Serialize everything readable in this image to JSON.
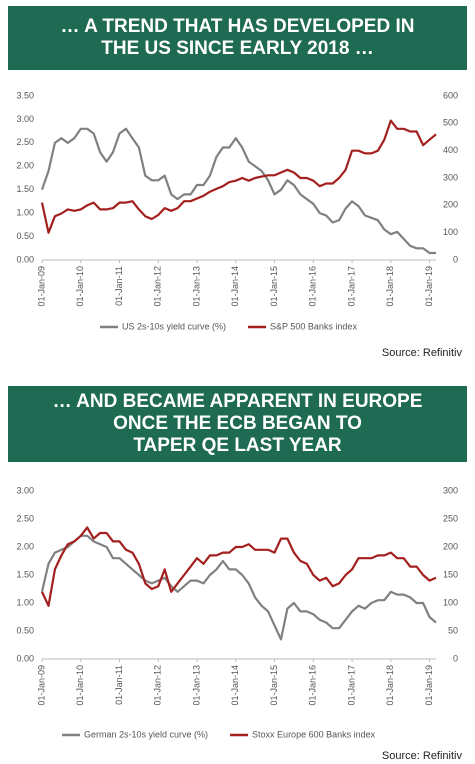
{
  "chart_data": [
    {
      "type": "line",
      "title": [
        "… A TREND THAT HAS DEVELOPED IN",
        "THE US SINCE EARLY 2018 …"
      ],
      "x": [
        "2009-01",
        "2009-03",
        "2009-05",
        "2009-07",
        "2009-09",
        "2009-11",
        "2010-01",
        "2010-03",
        "2010-05",
        "2010-07",
        "2010-09",
        "2010-11",
        "2011-01",
        "2011-03",
        "2011-05",
        "2011-07",
        "2011-09",
        "2011-11",
        "2012-01",
        "2012-03",
        "2012-05",
        "2012-07",
        "2012-09",
        "2012-11",
        "2013-01",
        "2013-03",
        "2013-05",
        "2013-07",
        "2013-09",
        "2013-11",
        "2014-01",
        "2014-03",
        "2014-05",
        "2014-07",
        "2014-09",
        "2014-11",
        "2015-01",
        "2015-03",
        "2015-05",
        "2015-07",
        "2015-09",
        "2015-11",
        "2016-01",
        "2016-03",
        "2016-05",
        "2016-07",
        "2016-09",
        "2016-11",
        "2017-01",
        "2017-03",
        "2017-05",
        "2017-07",
        "2017-09",
        "2017-11",
        "2018-01",
        "2018-03",
        "2018-05",
        "2018-07",
        "2018-09",
        "2018-11",
        "2019-01",
        "2019-03"
      ],
      "xlim": [
        "2009-01",
        "2019-03"
      ],
      "xticks": [
        {
          "value": "2009-01",
          "label": "01-Jan-09"
        },
        {
          "value": "2010-01",
          "label": "01-Jan-10"
        },
        {
          "value": "2011-01",
          "label": "01-Jan-11"
        },
        {
          "value": "2012-01",
          "label": "01-Jan-12"
        },
        {
          "value": "2013-01",
          "label": "01-Jan-13"
        },
        {
          "value": "2014-01",
          "label": "01-Jan-14"
        },
        {
          "value": "2015-01",
          "label": "01-Jan-15"
        },
        {
          "value": "2016-01",
          "label": "01-Jan-16"
        },
        {
          "value": "2017-01",
          "label": "01-Jan-17"
        },
        {
          "value": "2018-01",
          "label": "01-Jan-18"
        },
        {
          "value": "2019-01",
          "label": "01-Jan-19"
        }
      ],
      "ylim": [
        0,
        3.5
      ],
      "yticks": [
        {
          "value": 0,
          "label": "0.00"
        },
        {
          "value": 0.5,
          "label": "0.50"
        },
        {
          "value": 1,
          "label": "1.00"
        },
        {
          "value": 1.5,
          "label": "1.50"
        },
        {
          "value": 2,
          "label": "2.00"
        },
        {
          "value": 2.5,
          "label": "2.50"
        },
        {
          "value": 3,
          "label": "3.00"
        },
        {
          "value": 3.5,
          "label": "3.50"
        }
      ],
      "y2lim": [
        0,
        600
      ],
      "y2ticks": [
        0,
        100,
        200,
        300,
        400,
        500,
        600
      ],
      "series": [
        {
          "name": "US 2s-10s yield curve (%)",
          "color": "#808080",
          "values": [
            1.5,
            1.9,
            2.5,
            2.6,
            2.5,
            2.6,
            2.8,
            2.8,
            2.7,
            2.3,
            2.1,
            2.3,
            2.7,
            2.8,
            2.6,
            2.4,
            1.8,
            1.7,
            1.7,
            1.8,
            1.4,
            1.3,
            1.4,
            1.4,
            1.6,
            1.6,
            1.8,
            2.2,
            2.4,
            2.4,
            2.6,
            2.4,
            2.1,
            2.0,
            1.9,
            1.7,
            1.4,
            1.5,
            1.7,
            1.6,
            1.4,
            1.3,
            1.2,
            1.0,
            0.95,
            0.8,
            0.85,
            1.1,
            1.25,
            1.15,
            0.95,
            0.9,
            0.85,
            0.65,
            0.55,
            0.6,
            0.45,
            0.3,
            0.25,
            0.25,
            0.15,
            0.15
          ]
        },
        {
          "name": "S&P 500 Banks index",
          "color": "#a3201f",
          "axis": "y2",
          "values": [
            210,
            100,
            160,
            170,
            185,
            180,
            185,
            200,
            210,
            185,
            185,
            190,
            210,
            210,
            215,
            185,
            160,
            150,
            165,
            190,
            180,
            190,
            215,
            215,
            225,
            235,
            250,
            260,
            270,
            285,
            290,
            300,
            290,
            300,
            305,
            310,
            310,
            320,
            330,
            320,
            300,
            300,
            290,
            270,
            280,
            280,
            300,
            330,
            400,
            400,
            390,
            390,
            400,
            440,
            510,
            480,
            480,
            470,
            470,
            420,
            440,
            460
          ]
        }
      ],
      "source": "Source: Refinitiv"
    },
    {
      "type": "line",
      "title": [
        "… AND BECAME APPARENT IN EUROPE",
        "ONCE THE ECB BEGAN TO",
        "TAPER QE LAST YEAR"
      ],
      "x": [
        "2009-01",
        "2009-03",
        "2009-05",
        "2009-07",
        "2009-09",
        "2009-11",
        "2010-01",
        "2010-03",
        "2010-05",
        "2010-07",
        "2010-09",
        "2010-11",
        "2011-01",
        "2011-03",
        "2011-05",
        "2011-07",
        "2011-09",
        "2011-11",
        "2012-01",
        "2012-03",
        "2012-05",
        "2012-07",
        "2012-09",
        "2012-11",
        "2013-01",
        "2013-03",
        "2013-05",
        "2013-07",
        "2013-09",
        "2013-11",
        "2014-01",
        "2014-03",
        "2014-05",
        "2014-07",
        "2014-09",
        "2014-11",
        "2015-01",
        "2015-03",
        "2015-05",
        "2015-07",
        "2015-09",
        "2015-11",
        "2016-01",
        "2016-03",
        "2016-05",
        "2016-07",
        "2016-09",
        "2016-11",
        "2017-01",
        "2017-03",
        "2017-05",
        "2017-07",
        "2017-09",
        "2017-11",
        "2018-01",
        "2018-03",
        "2018-05",
        "2018-07",
        "2018-09",
        "2018-11",
        "2019-01",
        "2019-03"
      ],
      "xlim": [
        "2009-01",
        "2019-03"
      ],
      "xticks": [
        {
          "value": "2009-01",
          "label": "01-Jan-09"
        },
        {
          "value": "2010-01",
          "label": "01-Jan-10"
        },
        {
          "value": "2011-01",
          "label": "01-Jan-11"
        },
        {
          "value": "2012-01",
          "label": "01-Jan-12"
        },
        {
          "value": "2013-01",
          "label": "01-Jan-13"
        },
        {
          "value": "2014-01",
          "label": "01-Jan-14"
        },
        {
          "value": "2015-01",
          "label": "01-Jan-15"
        },
        {
          "value": "2016-01",
          "label": "01-Jan-16"
        },
        {
          "value": "2017-01",
          "label": "01-Jan-17"
        },
        {
          "value": "2018-01",
          "label": "01-Jan-18"
        },
        {
          "value": "2019-01",
          "label": "01-Jan-19"
        }
      ],
      "ylim": [
        0,
        3
      ],
      "yticks": [
        {
          "value": 0,
          "label": "0.00"
        },
        {
          "value": 0.5,
          "label": "0.50"
        },
        {
          "value": 1,
          "label": "1.00"
        },
        {
          "value": 1.5,
          "label": "1.50"
        },
        {
          "value": 2,
          "label": "2.00"
        },
        {
          "value": 2.5,
          "label": "2.50"
        },
        {
          "value": 3,
          "label": "3.00"
        }
      ],
      "y2lim": [
        0,
        300
      ],
      "y2ticks": [
        0,
        50,
        100,
        150,
        200,
        250,
        300
      ],
      "series": [
        {
          "name": "German 2s-10s yield curve (%)",
          "color": "#808080",
          "values": [
            1.2,
            1.7,
            1.9,
            1.95,
            2.0,
            2.1,
            2.2,
            2.2,
            2.1,
            2.05,
            2.0,
            1.8,
            1.8,
            1.7,
            1.6,
            1.5,
            1.4,
            1.35,
            1.4,
            1.45,
            1.3,
            1.2,
            1.3,
            1.4,
            1.4,
            1.35,
            1.5,
            1.6,
            1.75,
            1.6,
            1.6,
            1.5,
            1.35,
            1.1,
            0.95,
            0.85,
            0.6,
            0.35,
            0.9,
            1.0,
            0.85,
            0.85,
            0.8,
            0.7,
            0.65,
            0.55,
            0.55,
            0.7,
            0.85,
            0.95,
            0.9,
            1.0,
            1.05,
            1.05,
            1.2,
            1.15,
            1.15,
            1.1,
            1.0,
            1.0,
            0.75,
            0.65
          ]
        },
        {
          "name": "Stoxx Europe 600 Banks index",
          "color": "#a3201f",
          "axis": "y2",
          "values": [
            120,
            95,
            160,
            185,
            205,
            210,
            220,
            235,
            215,
            225,
            225,
            210,
            210,
            195,
            190,
            170,
            135,
            125,
            130,
            160,
            120,
            135,
            150,
            165,
            180,
            170,
            185,
            185,
            190,
            190,
            200,
            200,
            205,
            195,
            195,
            195,
            190,
            215,
            215,
            190,
            175,
            170,
            150,
            140,
            145,
            130,
            135,
            150,
            160,
            180,
            180,
            180,
            185,
            185,
            190,
            180,
            180,
            165,
            165,
            150,
            140,
            145
          ]
        }
      ],
      "source": "Source: Refinitiv"
    }
  ]
}
